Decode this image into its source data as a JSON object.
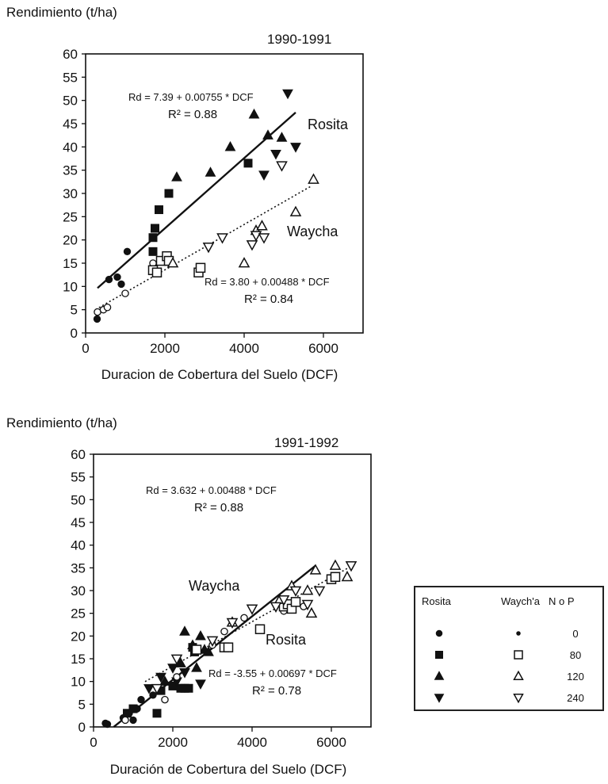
{
  "chart_data": [
    {
      "type": "scatter",
      "ylabel": "Rendimiento (t/ha)",
      "period": "1990-1991",
      "xlabel": "Duracion de Cobertura del Suelo (DCF)",
      "xlim": [
        0,
        7000
      ],
      "ylim": [
        0,
        60
      ],
      "x_ticks": [
        "0",
        "2000",
        "4000",
        "6000"
      ],
      "y_ticks": [
        "0",
        "5",
        "10",
        "15",
        "20",
        "25",
        "30",
        "35",
        "40",
        "45",
        "50",
        "55",
        "60"
      ],
      "series": [
        {
          "variety": "Rosita",
          "level": "0",
          "marker": "dot",
          "points": [
            [
              290,
              3
            ],
            [
              590,
              11.5
            ],
            [
              800,
              12
            ],
            [
              900,
              10.5
            ],
            [
              1050,
              17.5
            ]
          ]
        },
        {
          "variety": "Rosita",
          "level": "80",
          "marker": "square-filled",
          "points": [
            [
              1700,
              17.5
            ],
            [
              1700,
              20.5
            ],
            [
              1750,
              22.5
            ],
            [
              1850,
              26.5
            ],
            [
              2100,
              30
            ],
            [
              4100,
              36.5
            ]
          ]
        },
        {
          "variety": "Rosita",
          "level": "120",
          "marker": "triangle-up-filled",
          "points": [
            [
              2300,
              33.5
            ],
            [
              3150,
              34.5
            ],
            [
              3650,
              40
            ],
            [
              4250,
              47
            ],
            [
              4600,
              42.5
            ],
            [
              4950,
              42
            ]
          ]
        },
        {
          "variety": "Rosita",
          "level": "240",
          "marker": "triangle-down-filled",
          "points": [
            [
              4500,
              34
            ],
            [
              4800,
              38.5
            ],
            [
              5100,
              51.5
            ],
            [
              5300,
              40
            ]
          ]
        },
        {
          "variety": "Waycha",
          "level": "0",
          "marker": "dot-open",
          "points": [
            [
              300,
              4.5
            ],
            [
              450,
              5
            ],
            [
              550,
              5.5
            ],
            [
              1000,
              8.5
            ],
            [
              1700,
              15
            ]
          ]
        },
        {
          "variety": "Waycha",
          "level": "80",
          "marker": "square-open",
          "points": [
            [
              1700,
              13.5
            ],
            [
              1800,
              13
            ],
            [
              1900,
              15.5
            ],
            [
              2050,
              16.5
            ],
            [
              2100,
              15.5
            ],
            [
              2850,
              13
            ],
            [
              2900,
              14
            ]
          ]
        },
        {
          "variety": "Waycha",
          "level": "120",
          "marker": "triangle-up-open",
          "points": [
            [
              2200,
              15
            ],
            [
              4000,
              15
            ],
            [
              4300,
              22
            ],
            [
              4450,
              23
            ],
            [
              5300,
              26
            ],
            [
              5750,
              33
            ]
          ]
        },
        {
          "variety": "Waycha",
          "level": "240",
          "marker": "triangle-down-open",
          "points": [
            [
              3100,
              18.5
            ],
            [
              3450,
              20.5
            ],
            [
              4200,
              19
            ],
            [
              4300,
              21
            ],
            [
              4500,
              20.5
            ],
            [
              4950,
              36
            ]
          ]
        }
      ],
      "lines": [
        {
          "label": "Rosita",
          "style": "solid",
          "intercept": 7.39,
          "slope": 0.00755,
          "x_range": [
            300,
            5300
          ],
          "equation": "Rd = 7.39 + 0.00755 * DCF",
          "r2": "R² = 0.88"
        },
        {
          "label": "Waycha",
          "style": "dotted",
          "intercept": 3.8,
          "slope": 0.00488,
          "x_range": [
            250,
            5700
          ],
          "equation": "Rd = 3.80 + 0.00488 * DCF",
          "r2": "R² = 0.84"
        }
      ]
    },
    {
      "type": "scatter",
      "ylabel": "Rendimiento (t/ha)",
      "period": "1991-1992",
      "xlabel": "Duración de Cobertura del Suelo (DCF)",
      "xlim": [
        0,
        7000
      ],
      "ylim": [
        0,
        60
      ],
      "x_ticks": [
        "0",
        "2000",
        "4000",
        "6000"
      ],
      "y_ticks": [
        "0",
        "5",
        "10",
        "15",
        "20",
        "25",
        "30",
        "35",
        "40",
        "45",
        "50",
        "55",
        "60"
      ],
      "series": [
        {
          "variety": "Rosita",
          "level": "0",
          "marker": "dot",
          "points": [
            [
              300,
              0.8
            ],
            [
              350,
              0.6
            ],
            [
              750,
              2
            ],
            [
              900,
              3
            ],
            [
              1000,
              1.5
            ],
            [
              1100,
              4
            ],
            [
              1200,
              6
            ],
            [
              1500,
              7
            ]
          ]
        },
        {
          "variety": "Rosita",
          "level": "80",
          "marker": "square-filled",
          "points": [
            [
              850,
              3
            ],
            [
              1000,
              4
            ],
            [
              1600,
              3
            ],
            [
              1700,
              8
            ],
            [
              2000,
              9
            ],
            [
              2200,
              8.5
            ],
            [
              2300,
              8.5
            ],
            [
              2400,
              8.5
            ],
            [
              2500,
              17.5
            ],
            [
              2550,
              16.5
            ]
          ]
        },
        {
          "variety": "Rosita",
          "level": "120",
          "marker": "triangle-up-filled",
          "points": [
            [
              1800,
              10
            ],
            [
              2200,
              14
            ],
            [
              2300,
              21
            ],
            [
              2500,
              18
            ],
            [
              2600,
              13
            ],
            [
              2700,
              20
            ],
            [
              2800,
              17
            ],
            [
              2900,
              16.5
            ]
          ]
        },
        {
          "variety": "Rosita",
          "level": "240",
          "marker": "triangle-down-filled",
          "points": [
            [
              1400,
              8.5
            ],
            [
              1700,
              11
            ],
            [
              2000,
              13
            ],
            [
              2100,
              10
            ],
            [
              2300,
              12
            ],
            [
              2700,
              9.5
            ]
          ]
        },
        {
          "variety": "Waycha",
          "level": "0",
          "marker": "dot-open",
          "points": [
            [
              800,
              1.5
            ],
            [
              1800,
              6
            ],
            [
              2100,
              11
            ],
            [
              3000,
              18
            ],
            [
              3300,
              21
            ],
            [
              3800,
              24
            ],
            [
              4800,
              25.5
            ],
            [
              5000,
              27
            ],
            [
              5300,
              26.5
            ]
          ]
        },
        {
          "variety": "Waycha",
          "level": "80",
          "marker": "square-open",
          "points": [
            [
              2600,
              17
            ],
            [
              3300,
              17.5
            ],
            [
              3400,
              17.5
            ],
            [
              4200,
              21.5
            ],
            [
              4800,
              26.5
            ],
            [
              4900,
              27
            ],
            [
              5000,
              26
            ],
            [
              5100,
              27.5
            ],
            [
              6000,
              32.5
            ],
            [
              6100,
              33
            ]
          ]
        },
        {
          "variety": "Waycha",
          "level": "120",
          "marker": "triangle-up-open",
          "points": [
            [
              3500,
              23
            ],
            [
              4700,
              28
            ],
            [
              5000,
              31
            ],
            [
              5400,
              30
            ],
            [
              5500,
              25
            ],
            [
              5600,
              34.5
            ],
            [
              6100,
              35.5
            ],
            [
              6400,
              33
            ]
          ]
        },
        {
          "variety": "Waycha",
          "level": "240",
          "marker": "triangle-down-open",
          "points": [
            [
              1600,
              8.5
            ],
            [
              2100,
              15
            ],
            [
              3000,
              19
            ],
            [
              3500,
              23
            ],
            [
              4000,
              26
            ],
            [
              4600,
              26.5
            ],
            [
              4800,
              28
            ],
            [
              5100,
              30
            ],
            [
              5400,
              27
            ],
            [
              5700,
              30
            ],
            [
              6500,
              35.5
            ]
          ]
        }
      ],
      "lines": [
        {
          "label": "Rosita",
          "style": "solid",
          "intercept": -3.55,
          "slope": 0.00697,
          "x_range": [
            510,
            5600
          ],
          "equation": "Rd = -3.55 + 0.00697 * DCF",
          "r2": "R² = 0.78"
        },
        {
          "label": "Waycha",
          "style": "dotted",
          "intercept": 3.632,
          "slope": 0.00488,
          "x_range": [
            1300,
            6600
          ],
          "equation": "Rd = 3.632 + 0.00488 * DCF",
          "r2": "R² = 0.88"
        }
      ]
    }
  ],
  "legend": {
    "headers": [
      "Rosita",
      "Waych'a",
      "N o P"
    ],
    "rows": [
      {
        "rosita_marker": "dot",
        "waycha_marker": "dot-small",
        "value": "0"
      },
      {
        "rosita_marker": "square-filled",
        "waycha_marker": "square-open",
        "value": "80"
      },
      {
        "rosita_marker": "triangle-up-filled",
        "waycha_marker": "triangle-up-open",
        "value": "120"
      },
      {
        "rosita_marker": "triangle-down-filled",
        "waycha_marker": "triangle-down-open",
        "value": "240"
      }
    ]
  }
}
